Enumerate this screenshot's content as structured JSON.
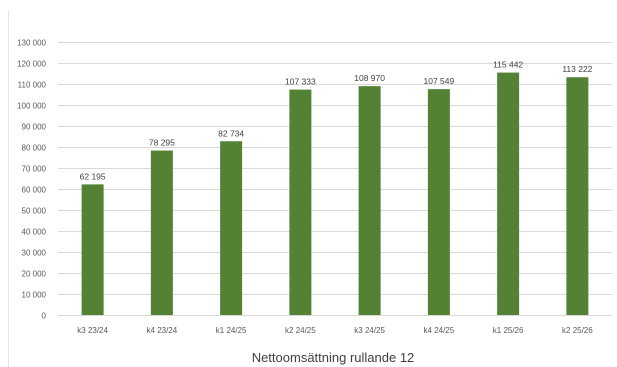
{
  "chart_data": {
    "type": "bar",
    "xlabel": "Nettoomsättning rullande 12",
    "ylabel": "",
    "categories": [
      "k3 23/24",
      "k4 23/24",
      "k1 24/25",
      "k2 24/25",
      "k3 24/25",
      "k4 24/25",
      "k1 25/26",
      "k2 25/26"
    ],
    "values": [
      62195,
      78295,
      82734,
      107333,
      108970,
      107549,
      115442,
      113222
    ],
    "data_labels": [
      "62 195",
      "78 295",
      "82 734",
      "107 333",
      "108 970",
      "107 549",
      "115 442",
      "113 222"
    ],
    "ylim": [
      0,
      130000
    ],
    "y_ticks": [
      0,
      10000,
      20000,
      30000,
      40000,
      50000,
      60000,
      70000,
      80000,
      90000,
      100000,
      110000,
      120000,
      130000
    ],
    "y_tick_labels": [
      "0",
      "10 000",
      "20 000",
      "30 000",
      "40 000",
      "50 000",
      "60 000",
      "70 000",
      "80 000",
      "90 000",
      "100 000",
      "110 000",
      "120 000",
      "130 000"
    ],
    "grid": true,
    "legend": "none",
    "bar_color": "#548235",
    "grid_color": "#d9d9d9"
  }
}
